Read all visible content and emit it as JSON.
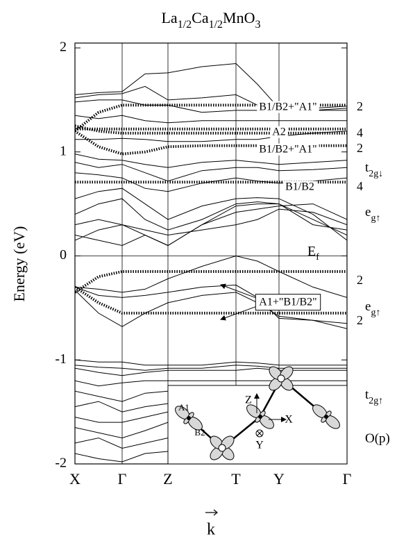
{
  "chart_data": {
    "type": "line",
    "title": [
      "La",
      "1/2",
      "Ca",
      "1/2",
      "MnO",
      "3"
    ],
    "ylabel": "Energy (eV)",
    "xlabel": "k",
    "x": [
      0,
      0.34,
      0.68,
      1.01,
      1.34,
      1.83,
      2.32,
      2.63,
      2.94,
      3.43,
      3.92
    ],
    "xlim": [
      0,
      3.92
    ],
    "xticks": [
      {
        "value": 0,
        "label": "X"
      },
      {
        "value": 0.68,
        "label": "Γ"
      },
      {
        "value": 1.34,
        "label": "Z"
      },
      {
        "value": 2.32,
        "label": "T"
      },
      {
        "value": 2.94,
        "label": "Y"
      },
      {
        "value": 3.92,
        "label": "Γ"
      }
    ],
    "ylim": [
      -2,
      2
    ],
    "yticks": [
      -2,
      -1,
      0,
      1,
      2
    ],
    "fermi_level": 0,
    "line_color": "#000000",
    "series": [
      {
        "color": "#000000",
        "style": "dotted",
        "values": [
          1.2,
          1.38,
          1.45,
          1.45,
          1.45,
          1.45,
          1.45,
          1.45,
          1.45,
          1.45,
          1.45
        ]
      },
      {
        "color": "#000000",
        "style": "dotted",
        "values": [
          1.22,
          1.22,
          1.22,
          1.22,
          1.22,
          1.22,
          1.22,
          1.22,
          1.22,
          1.22,
          1.22
        ]
      },
      {
        "color": "#000000",
        "style": "dotted",
        "values": [
          1.25,
          1.2,
          1.18,
          1.18,
          1.18,
          1.18,
          1.18,
          1.18,
          1.18,
          1.18,
          1.18
        ]
      },
      {
        "color": "#000000",
        "style": "dotted",
        "values": [
          1.2,
          1.05,
          0.98,
          1.0,
          1.05,
          1.06,
          1.06,
          1.06,
          1.06,
          1.06,
          1.06
        ]
      },
      {
        "color": "#000000",
        "style": "dotted",
        "values": [
          0.71,
          0.71,
          0.71,
          0.71,
          0.71,
          0.71,
          0.71,
          0.71,
          0.71,
          0.71,
          0.71
        ]
      },
      {
        "color": "#000000",
        "style": "dotted",
        "values": [
          -0.35,
          -0.2,
          -0.15,
          -0.15,
          -0.15,
          -0.15,
          -0.15,
          -0.15,
          -0.15,
          -0.15,
          -0.15
        ]
      },
      {
        "color": "#000000",
        "style": "dotted",
        "values": [
          -0.3,
          -0.45,
          -0.55,
          -0.55,
          -0.55,
          -0.55,
          -0.55,
          -0.55,
          -0.55,
          -0.55,
          -0.55
        ]
      },
      {
        "color": "#000000",
        "style": "solid",
        "values": [
          1.55,
          1.57,
          1.58,
          1.75,
          1.76,
          1.82,
          1.85,
          1.65,
          1.42,
          1.42,
          1.44
        ]
      },
      {
        "color": "#000000",
        "style": "solid",
        "values": [
          1.52,
          1.55,
          1.56,
          1.63,
          1.5,
          1.52,
          1.55,
          1.45,
          1.38,
          1.4,
          1.42
        ]
      },
      {
        "color": "#000000",
        "style": "solid",
        "values": [
          1.48,
          1.5,
          1.5,
          1.45,
          1.45,
          1.38,
          1.4,
          1.4,
          1.38,
          1.4,
          1.4
        ]
      },
      {
        "color": "#000000",
        "style": "solid",
        "values": [
          1.35,
          1.32,
          1.35,
          1.3,
          1.28,
          1.3,
          1.3,
          1.3,
          1.3,
          1.3,
          1.3
        ]
      },
      {
        "color": "#000000",
        "style": "solid",
        "values": [
          1.12,
          1.12,
          1.13,
          1.12,
          1.1,
          1.1,
          1.12,
          1.12,
          1.15,
          1.18,
          1.2
        ]
      },
      {
        "color": "#000000",
        "style": "solid",
        "values": [
          0.98,
          0.93,
          0.92,
          0.88,
          0.85,
          0.9,
          0.92,
          0.9,
          0.88,
          0.9,
          0.92
        ]
      },
      {
        "color": "#000000",
        "style": "solid",
        "values": [
          0.9,
          0.85,
          0.88,
          0.8,
          0.72,
          0.82,
          0.85,
          0.85,
          0.82,
          0.83,
          0.85
        ]
      },
      {
        "color": "#000000",
        "style": "solid",
        "values": [
          0.8,
          0.78,
          0.75,
          0.65,
          0.62,
          0.7,
          0.75,
          0.72,
          0.7,
          0.72,
          0.75
        ]
      },
      {
        "color": "#000000",
        "style": "solid",
        "values": [
          0.55,
          0.62,
          0.65,
          0.5,
          0.35,
          0.48,
          0.55,
          0.56,
          0.55,
          0.4,
          0.15
        ]
      },
      {
        "color": "#000000",
        "style": "solid",
        "values": [
          0.4,
          0.5,
          0.55,
          0.35,
          0.25,
          0.35,
          0.5,
          0.52,
          0.5,
          0.3,
          0.25
        ]
      },
      {
        "color": "#000000",
        "style": "solid",
        "values": [
          0.3,
          0.35,
          0.3,
          0.2,
          0.1,
          0.3,
          0.48,
          0.5,
          0.5,
          0.35,
          0.2
        ]
      },
      {
        "color": "#000000",
        "style": "solid",
        "values": [
          0.2,
          0.15,
          0.1,
          0.2,
          0.1,
          0.3,
          0.42,
          0.45,
          0.48,
          0.5,
          0.35
        ]
      },
      {
        "color": "#000000",
        "style": "solid",
        "values": [
          0.15,
          0.25,
          0.3,
          0.25,
          0.2,
          0.25,
          0.3,
          0.35,
          0.45,
          0.42,
          0.3
        ]
      },
      {
        "color": "#000000",
        "style": "solid",
        "values": [
          -0.3,
          -0.32,
          -0.35,
          -0.32,
          -0.22,
          -0.1,
          0.0,
          -0.05,
          -0.15,
          -0.3,
          -0.4
        ]
      },
      {
        "color": "#000000",
        "style": "solid",
        "values": [
          -0.3,
          -0.38,
          -0.4,
          -0.38,
          -0.35,
          -0.3,
          -0.28,
          -0.4,
          -0.6,
          -0.62,
          -0.65
        ]
      },
      {
        "color": "#000000",
        "style": "solid",
        "values": [
          -0.33,
          -0.55,
          -0.68,
          -0.55,
          -0.45,
          -0.38,
          -0.35,
          -0.45,
          -0.58,
          -0.62,
          -0.7
        ]
      },
      {
        "color": "#000000",
        "style": "solid",
        "values": [
          -1.0,
          -1.02,
          -1.02,
          -1.05,
          -1.05,
          -1.05,
          -1.02,
          -1.03,
          -1.05,
          -1.05,
          -1.05
        ]
      },
      {
        "color": "#000000",
        "style": "solid",
        "values": [
          -1.05,
          -1.07,
          -1.08,
          -1.1,
          -1.08,
          -1.08,
          -1.05,
          -1.06,
          -1.08,
          -1.08,
          -1.08
        ]
      },
      {
        "color": "#000000",
        "style": "solid",
        "values": [
          -1.08,
          -1.12,
          -1.15,
          -1.12,
          -1.1,
          -1.1,
          -1.1,
          -1.08,
          -1.1,
          -1.1,
          -1.1
        ]
      },
      {
        "color": "#000000",
        "style": "solid",
        "values": [
          -1.2,
          -1.25,
          -1.22,
          -1.2,
          -1.2,
          -1.2,
          -1.2,
          -1.2,
          -1.2,
          -1.2,
          -1.2
        ]
      },
      {
        "color": "#000000",
        "style": "solid",
        "values": [
          -1.3,
          -1.35,
          -1.4,
          -1.32,
          -1.3,
          -1.3,
          -1.3,
          -1.3,
          -1.3,
          -1.3,
          -1.3
        ]
      },
      {
        "color": "#000000",
        "style": "solid",
        "values": [
          -1.45,
          -1.4,
          -1.5,
          -1.45,
          -1.42,
          -1.4,
          -1.4,
          -1.4,
          -1.4,
          -1.4,
          -1.4
        ]
      },
      {
        "color": "#000000",
        "style": "solid",
        "values": [
          -1.55,
          -1.6,
          -1.6,
          -1.55,
          -1.5,
          -1.5,
          -1.5,
          -1.5,
          -1.5,
          -1.5,
          -1.5
        ]
      },
      {
        "color": "#000000",
        "style": "solid",
        "values": [
          -1.65,
          -1.7,
          -1.75,
          -1.68,
          -1.6,
          -1.6,
          -1.6,
          -1.6,
          -1.6,
          -1.6,
          -1.6
        ]
      },
      {
        "color": "#000000",
        "style": "solid",
        "values": [
          -1.8,
          -1.75,
          -1.85,
          -1.8,
          -1.75,
          -1.75,
          -1.75,
          -1.75,
          -1.75,
          -1.75,
          -1.75
        ]
      },
      {
        "color": "#000000",
        "style": "solid",
        "values": [
          -1.9,
          -1.95,
          -1.98,
          -1.9,
          -1.88,
          -1.88,
          -1.88,
          -1.88,
          -1.88,
          -1.88,
          -1.88
        ]
      }
    ],
    "band_labels": [
      "B1/B2+\"A1\"",
      "A2",
      "B1/B2+\"A1\"",
      "B1/B2",
      "A1+\"B1/B2\""
    ],
    "fermi_label": [
      "E",
      "f"
    ],
    "degeneracies": [
      2,
      4,
      2,
      4,
      2,
      2
    ],
    "orbital_labels": [
      [
        "t",
        "2g↓"
      ],
      [
        "e",
        "g↑"
      ],
      [
        "e",
        "g↑"
      ],
      [
        "t",
        "2g↑"
      ],
      [
        "O(p)"
      ]
    ],
    "inset_labels": [
      "A1",
      "B2",
      "Z",
      "X",
      "Y"
    ]
  }
}
